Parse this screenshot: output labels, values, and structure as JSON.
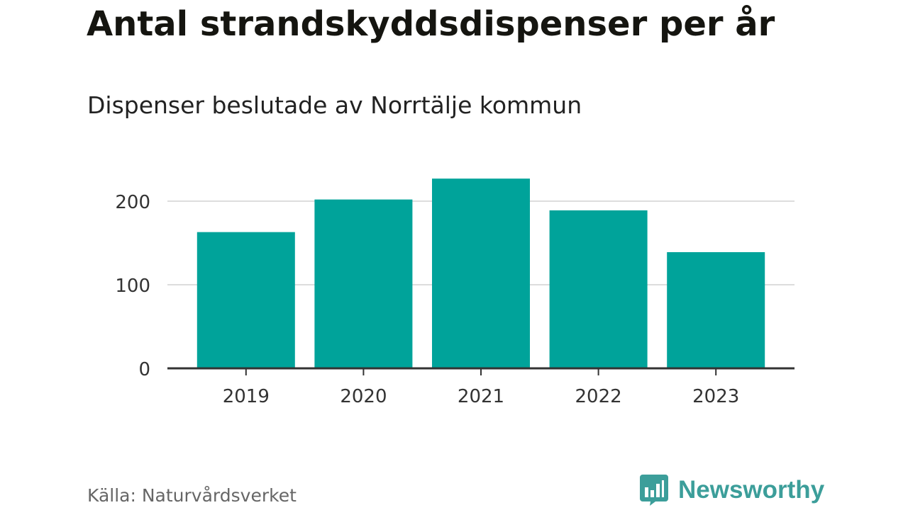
{
  "header": {
    "title": "Antal strandskyddsdispenser per år",
    "subtitle": "Dispenser beslutade av Norrtälje kommun"
  },
  "footer": {
    "source": "Källa: Naturvårdsverket",
    "brand": "Newsworthy",
    "brand_icon": "bar-chart-speech-bubble-icon"
  },
  "colors": {
    "bar": "#00a39a",
    "grid": "#dddddd",
    "axis": "#333333",
    "brand": "#3c9e9a"
  },
  "chart_data": {
    "type": "bar",
    "title": "Antal strandskyddsdispenser per år",
    "subtitle": "Dispenser beslutade av Norrtälje kommun",
    "categories": [
      "2019",
      "2020",
      "2021",
      "2022",
      "2023"
    ],
    "values": [
      163,
      202,
      227,
      189,
      139
    ],
    "xlabel": "",
    "ylabel": "",
    "ylim": [
      0,
      230
    ],
    "yticks": [
      0,
      100,
      200
    ],
    "grid": true,
    "legend": "none"
  }
}
